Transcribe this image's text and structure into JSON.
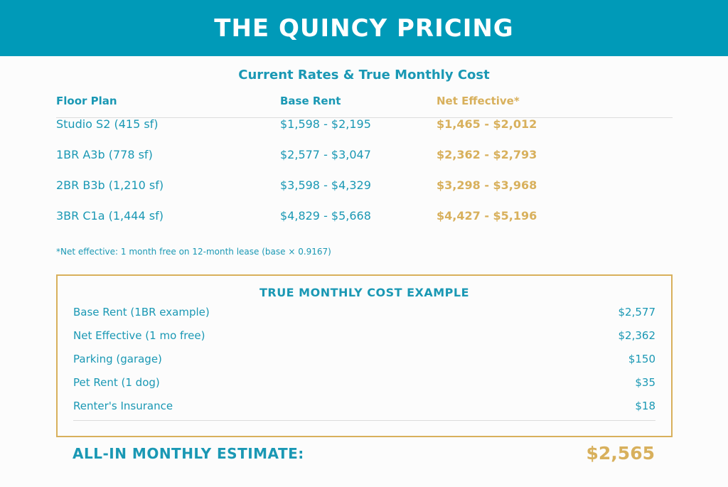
{
  "header": {
    "title": "THE QUINCY PRICING"
  },
  "rates": {
    "title": "Current Rates & True Monthly Cost",
    "columns": {
      "floor_plan": "Floor Plan",
      "base_rent": "Base Rent",
      "net_effective": "Net Effective*"
    },
    "rows": [
      {
        "plan": "Studio S2 (415 sf)",
        "base": "$1,598 - $2,195",
        "net": "$1,465 - $2,012"
      },
      {
        "plan": "1BR A3b (778 sf)",
        "base": "$2,577 - $3,047",
        "net": "$2,362 - $2,793"
      },
      {
        "plan": "2BR B3b (1,210 sf)",
        "base": "$3,598 - $4,329",
        "net": "$3,298 - $3,968"
      },
      {
        "plan": "3BR C1a (1,444 sf)",
        "base": "$4,829 - $5,668",
        "net": "$4,427 - $5,196"
      }
    ],
    "footnote": "*Net effective: 1 month free on 12-month lease (base × 0.9167)"
  },
  "cost_example": {
    "title": "TRUE MONTHLY COST EXAMPLE",
    "lines": [
      {
        "label": "Base Rent (1BR example)",
        "value": "$2,577"
      },
      {
        "label": "Net Effective (1 mo free)",
        "value": "$2,362"
      },
      {
        "label": "Parking (garage)",
        "value": "$150"
      },
      {
        "label": "Pet Rent (1 dog)",
        "value": "$35"
      },
      {
        "label": "Renter's Insurance",
        "value": "$18"
      }
    ]
  },
  "total": {
    "label": "ALL-IN MONTHLY ESTIMATE:",
    "value": "$2,565"
  },
  "colors": {
    "header_bg": "#009ab8",
    "teal_text": "#1a98b4",
    "gold_accent": "#d8b05c"
  }
}
